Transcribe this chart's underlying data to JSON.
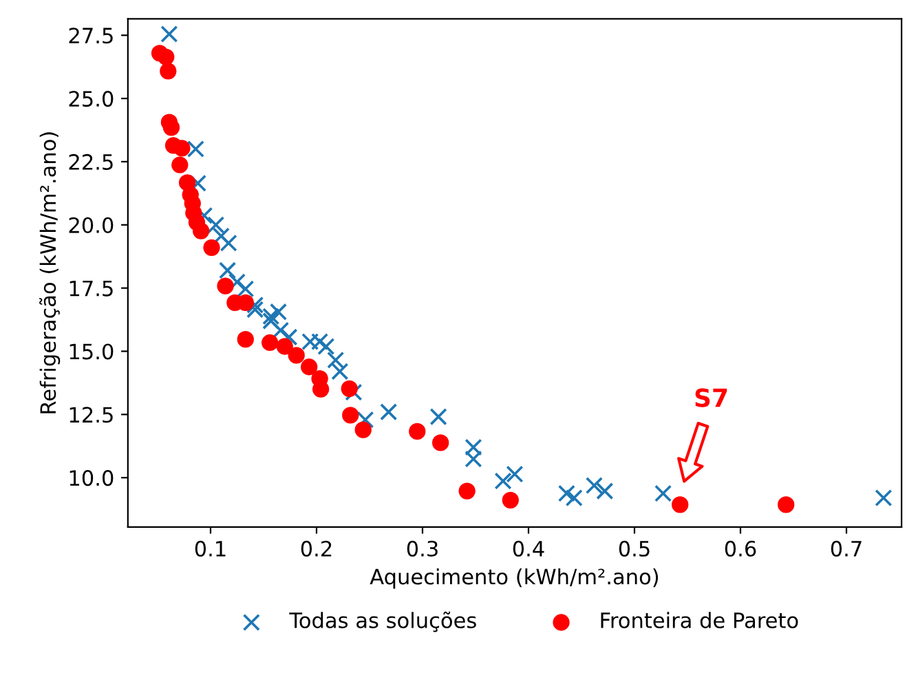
{
  "chart_data": {
    "type": "scatter",
    "xlabel": "Aquecimento (kWh/m².ano)",
    "ylabel": "Refrigeração (kWh/m².ano)",
    "xlim": [
      0.022,
      0.752
    ],
    "ylim": [
      8.05,
      28.15
    ],
    "xticks": [
      0.1,
      0.2,
      0.3,
      0.4,
      0.5,
      0.6,
      0.7
    ],
    "yticks": [
      {
        "value": 10,
        "label": "10.0"
      },
      {
        "value": 12.5,
        "label": "12.5"
      },
      {
        "value": 15,
        "label": "15.0"
      },
      {
        "value": 17.5,
        "label": "17.5"
      },
      {
        "value": 20,
        "label": "20.0"
      },
      {
        "value": 22.5,
        "label": "22.5"
      },
      {
        "value": 25,
        "label": "25.0"
      },
      {
        "value": 27.5,
        "label": "27.5"
      }
    ],
    "grid": false,
    "legend": "bottom",
    "annotations": [
      "S7"
    ],
    "series": [
      {
        "name": "Todas as soluções",
        "color": "#1f77b4",
        "marker": "cross",
        "x": [
          0.061,
          0.086,
          0.088,
          0.094,
          0.105,
          0.11,
          0.117,
          0.116,
          0.125,
          0.133,
          0.142,
          0.157,
          0.164,
          0.142,
          0.157,
          0.166,
          0.174,
          0.194,
          0.203,
          0.209,
          0.218,
          0.222,
          0.235,
          0.246,
          0.268,
          0.315,
          0.348,
          0.348,
          0.376,
          0.387,
          0.436,
          0.443,
          0.462,
          0.472,
          0.527,
          0.735
        ],
        "values": [
          27.55,
          23.0,
          21.65,
          20.37,
          20.0,
          19.56,
          19.28,
          18.2,
          17.74,
          17.47,
          16.83,
          16.38,
          16.56,
          16.65,
          16.2,
          15.83,
          15.56,
          15.38,
          15.38,
          15.19,
          14.65,
          14.2,
          13.38,
          12.29,
          12.6,
          12.41,
          11.2,
          10.74,
          9.87,
          10.14,
          9.38,
          9.2,
          9.69,
          9.47,
          9.38,
          9.2
        ]
      },
      {
        "name": "Fronteira de Pareto",
        "color": "#ff0000",
        "marker": "circle",
        "x": [
          0.052,
          0.058,
          0.06,
          0.061,
          0.063,
          0.065,
          0.073,
          0.071,
          0.078,
          0.081,
          0.083,
          0.084,
          0.087,
          0.091,
          0.101,
          0.114,
          0.123,
          0.133,
          0.133,
          0.156,
          0.17,
          0.181,
          0.193,
          0.203,
          0.204,
          0.231,
          0.232,
          0.244,
          0.295,
          0.317,
          0.342,
          0.383,
          0.543,
          0.643
        ],
        "values": [
          26.79,
          26.64,
          26.08,
          24.06,
          23.85,
          23.14,
          23.03,
          22.37,
          21.67,
          21.19,
          20.85,
          20.47,
          20.1,
          19.76,
          19.1,
          17.58,
          16.92,
          16.92,
          15.47,
          15.34,
          15.19,
          14.84,
          14.38,
          13.92,
          13.5,
          13.52,
          12.47,
          11.89,
          11.83,
          11.38,
          9.47,
          9.11,
          8.93,
          8.93
        ]
      }
    ]
  }
}
